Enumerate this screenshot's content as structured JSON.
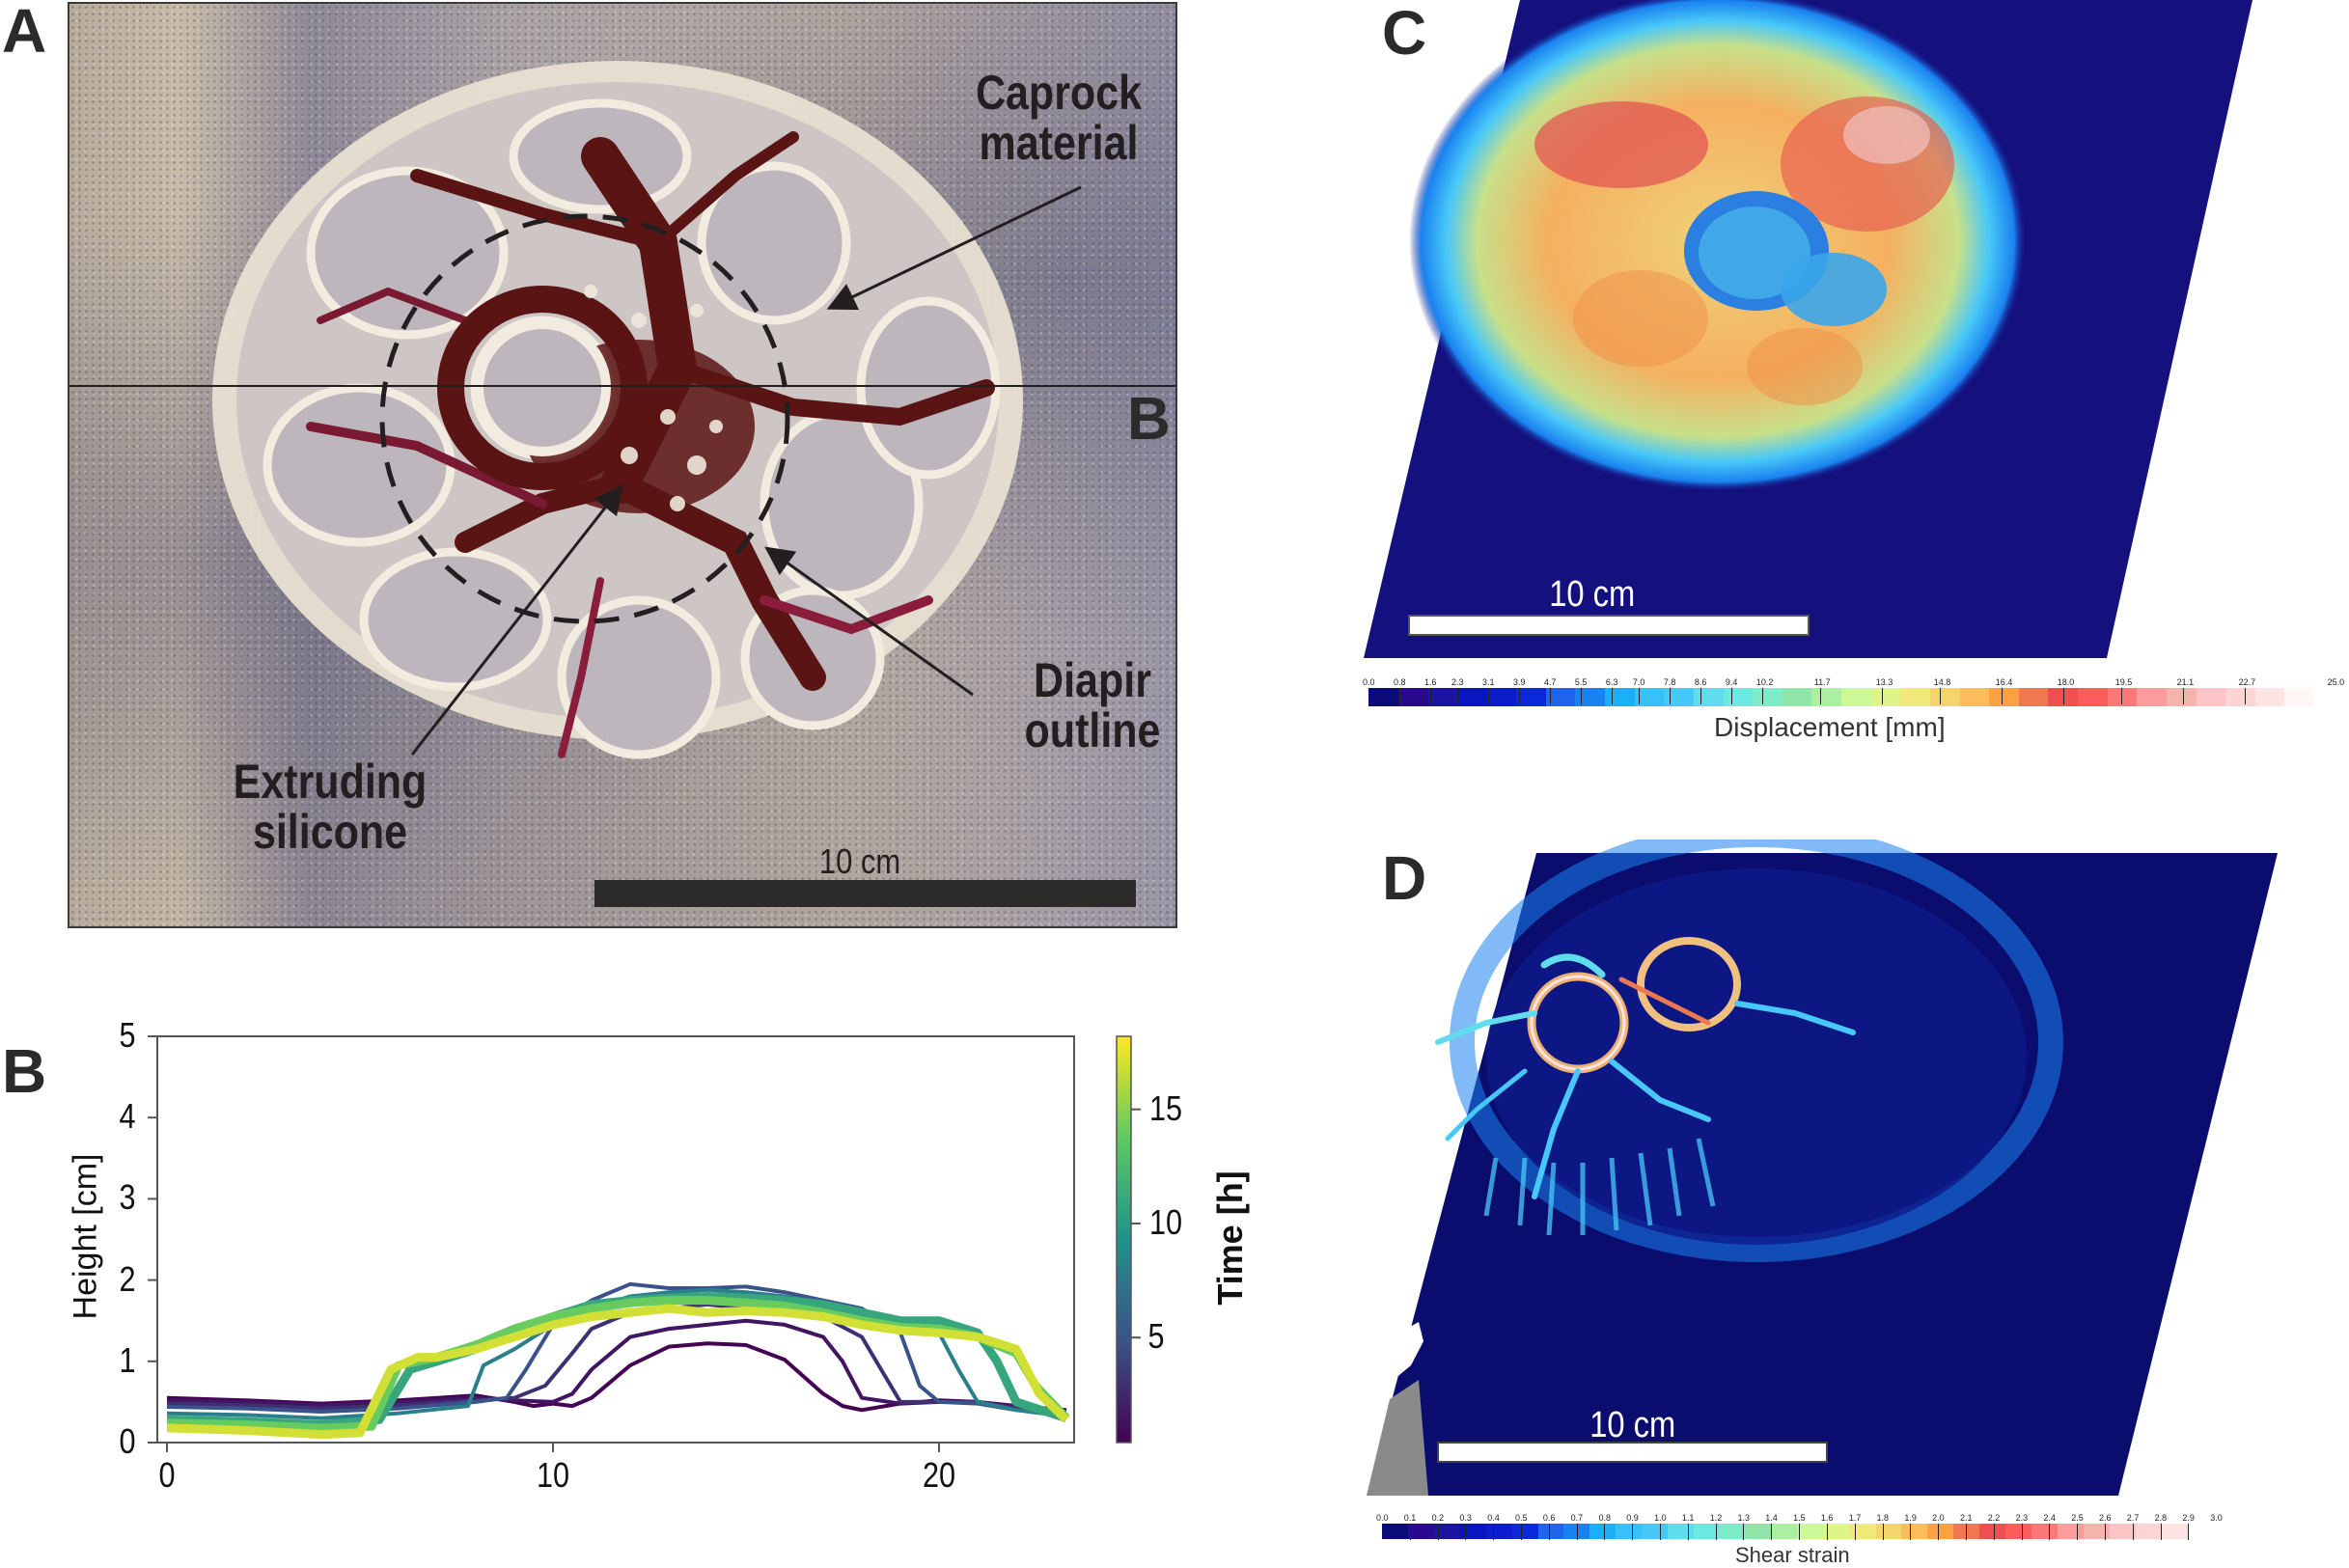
{
  "figure": {
    "panel_labels": {
      "a": "A",
      "b": "B",
      "c": "C",
      "d": "D"
    },
    "panel_a": {
      "section_line_label": "B",
      "annotations": [
        {
          "id": "caprock",
          "line1": "Caprock",
          "line2": "material"
        },
        {
          "id": "extruding",
          "line1": "Extruding",
          "line2": "silicone"
        },
        {
          "id": "diapir",
          "line1": "Diapir",
          "line2": "outline"
        }
      ],
      "scale_bar_label": "10 cm",
      "colors": {
        "silicone": "#5a1414",
        "caprock": "#ece6d8",
        "background": "#a9a2a5",
        "annotation": "#231f20"
      }
    },
    "panel_c": {
      "scale_bar_label": "10 cm",
      "colorbar": {
        "title": "Displacement [mm]",
        "ticks": [
          "0.0",
          "0.8",
          "1.6",
          "2.3",
          "3.1",
          "3.9",
          "4.7",
          "5.5",
          "6.3",
          "7.0",
          "7.8",
          "8.6",
          "9.4",
          "10.2",
          "11.7",
          "13.3",
          "14.8",
          "16.4",
          "18.0",
          "19.5",
          "21.1",
          "22.7",
          "25.0"
        ],
        "min": 0.0,
        "max": 25.0,
        "colors": [
          "#0a0a78",
          "#2a0a8c",
          "#1a14a0",
          "#0a14c0",
          "#0a1ccc",
          "#0a28dc",
          "#2064ec",
          "#1a82f0",
          "#1ab0f8",
          "#38c0f8",
          "#48c8f8",
          "#60dced",
          "#6ce8e0",
          "#7eecc8",
          "#90e6a8",
          "#aaf0a0",
          "#ccf898",
          "#e0f48c",
          "#f0e878",
          "#f4d46c",
          "#fcbc5c",
          "#fca044",
          "#f07850",
          "#ec5050",
          "#fc5c5c",
          "#fc7878",
          "#fc9c9c",
          "#f4b4ac",
          "#fcc4c4",
          "#fcd4d4",
          "#fce4e4",
          "#fff6f6"
        ]
      },
      "map_colors": {
        "background": "#14107e"
      }
    },
    "panel_d": {
      "scale_bar_label": "10 cm",
      "colorbar": {
        "title": "Shear strain",
        "ticks": [
          "0.0",
          "0.1",
          "0.2",
          "0.3",
          "0.4",
          "0.5",
          "0.6",
          "0.7",
          "0.8",
          "0.9",
          "1.0",
          "1.1",
          "1.2",
          "1.3",
          "1.4",
          "1.5",
          "1.6",
          "1.7",
          "1.8",
          "1.9",
          "2.0",
          "2.1",
          "2.2",
          "2.3",
          "2.4",
          "2.5",
          "2.6",
          "2.7",
          "2.8",
          "2.9",
          "3.0"
        ],
        "min": 0.0,
        "max": 3.0,
        "colors": [
          "#0a0a78",
          "#2a0a8c",
          "#1a14a0",
          "#0a14c0",
          "#0a1ccc",
          "#0a28dc",
          "#2064ec",
          "#1a82f0",
          "#1ab0f8",
          "#38c0f8",
          "#48c8f8",
          "#60dced",
          "#6ce8e0",
          "#7eecc8",
          "#90e6a8",
          "#aaf0a0",
          "#ccf898",
          "#e0f48c",
          "#f0e878",
          "#f4d46c",
          "#fcbc5c",
          "#fca044",
          "#f07850",
          "#ec5050",
          "#fc5c5c",
          "#fc7878",
          "#fc9c9c",
          "#f4b4ac",
          "#fcc4c4",
          "#fcd4d4",
          "#fce4e4"
        ]
      },
      "map_colors": {
        "background": "#0a0c6e"
      }
    }
  },
  "chart_data": {
    "type": "line",
    "title": "",
    "xlabel": "",
    "ylabel": "Height [cm]",
    "xlim": [
      -0.25,
      23.5
    ],
    "ylim": [
      0,
      5
    ],
    "xticks": [
      0,
      10,
      20
    ],
    "yticks": [
      0,
      1,
      2,
      3,
      4,
      5
    ],
    "grid": false,
    "colorbar": {
      "label": "Time [h]",
      "ticks": [
        5,
        10,
        15
      ],
      "range": [
        0.4,
        18.2
      ],
      "colormap": "viridis",
      "colormap_stops": [
        "#440154",
        "#3b528b",
        "#21918c",
        "#5ec962",
        "#fde725"
      ]
    },
    "series": [
      {
        "name": "t=0.5h",
        "time": 0.5,
        "x": [
          0,
          2,
          4,
          5,
          6,
          7,
          8,
          9,
          9.5,
          10,
          10.5,
          11,
          12,
          13,
          14,
          15,
          16,
          17,
          17.5,
          18,
          19,
          20,
          21,
          22,
          23.3
        ],
        "y": [
          0.55,
          0.52,
          0.48,
          0.5,
          0.52,
          0.55,
          0.58,
          0.5,
          0.45,
          0.48,
          0.45,
          0.55,
          0.95,
          1.18,
          1.22,
          1.2,
          1.02,
          0.6,
          0.45,
          0.4,
          0.48,
          0.52,
          0.5,
          0.45,
          0.4
        ]
      },
      {
        "name": "t=1.5h",
        "time": 1.5,
        "x": [
          0,
          2,
          4,
          6,
          8,
          9,
          10,
          10.5,
          11,
          12,
          13,
          14,
          15,
          16,
          17,
          17.5,
          18,
          19,
          20,
          21,
          22,
          23.3
        ],
        "y": [
          0.52,
          0.5,
          0.46,
          0.5,
          0.55,
          0.52,
          0.5,
          0.6,
          0.9,
          1.3,
          1.4,
          1.45,
          1.5,
          1.45,
          1.3,
          1.0,
          0.55,
          0.48,
          0.5,
          0.5,
          0.45,
          0.4
        ]
      },
      {
        "name": "t=3h",
        "time": 3.0,
        "x": [
          0,
          2,
          4,
          6,
          8,
          9,
          9.8,
          10.5,
          11,
          12,
          13,
          14,
          15,
          16,
          17,
          18,
          18.5,
          19,
          20,
          21,
          22,
          23.3
        ],
        "y": [
          0.48,
          0.46,
          0.42,
          0.46,
          0.52,
          0.55,
          0.7,
          1.1,
          1.4,
          1.6,
          1.65,
          1.7,
          1.65,
          1.6,
          1.55,
          1.3,
          0.9,
          0.5,
          0.5,
          0.5,
          0.42,
          0.38
        ]
      },
      {
        "name": "t=5h",
        "time": 5.0,
        "x": [
          0,
          2,
          4,
          6,
          8,
          8.8,
          9.3,
          10,
          11,
          12,
          13,
          14,
          15,
          16,
          17,
          18,
          19,
          19.5,
          20,
          21,
          22,
          23.3
        ],
        "y": [
          0.44,
          0.42,
          0.38,
          0.42,
          0.5,
          0.55,
          0.9,
          1.45,
          1.75,
          1.95,
          1.9,
          1.9,
          1.92,
          1.85,
          1.75,
          1.65,
          1.35,
          0.7,
          0.5,
          0.48,
          0.4,
          0.35
        ]
      },
      {
        "name": "t=8h",
        "time": 8.0,
        "x": [
          0,
          2,
          4,
          6,
          7.8,
          8.2,
          9,
          10,
          11,
          12,
          13,
          14,
          15,
          16,
          17,
          18,
          19,
          20,
          20.5,
          21,
          22,
          23.3
        ],
        "y": [
          0.36,
          0.34,
          0.3,
          0.36,
          0.45,
          0.95,
          1.15,
          1.45,
          1.65,
          1.8,
          1.85,
          1.88,
          1.85,
          1.8,
          1.72,
          1.6,
          1.5,
          1.35,
          0.9,
          0.5,
          0.4,
          0.32
        ]
      },
      {
        "name": "t=11h",
        "time": 11.0,
        "x": [
          0,
          2,
          4,
          5.5,
          6.3,
          7,
          8,
          9,
          10,
          11,
          12,
          13,
          14,
          15,
          16,
          17,
          18,
          19,
          20,
          21,
          21.5,
          22,
          23.3
        ],
        "y": [
          0.28,
          0.26,
          0.22,
          0.28,
          0.9,
          1.0,
          1.15,
          1.35,
          1.55,
          1.7,
          1.75,
          1.78,
          1.8,
          1.78,
          1.75,
          1.7,
          1.6,
          1.5,
          1.5,
          1.35,
          1.0,
          0.5,
          0.3
        ]
      },
      {
        "name": "t=14h",
        "time": 14.0,
        "x": [
          0,
          2,
          4,
          5.3,
          6,
          7,
          8,
          9,
          10,
          11,
          12,
          13,
          14,
          15,
          16,
          17,
          18,
          19,
          20,
          21,
          22,
          22.5,
          23.3
        ],
        "y": [
          0.24,
          0.22,
          0.18,
          0.2,
          0.95,
          1.05,
          1.2,
          1.4,
          1.55,
          1.65,
          1.72,
          1.75,
          1.75,
          1.72,
          1.68,
          1.6,
          1.5,
          1.42,
          1.4,
          1.3,
          1.1,
          0.7,
          0.3
        ]
      },
      {
        "name": "t=17h",
        "time": 17.0,
        "x": [
          0,
          2,
          4,
          5,
          5.8,
          6.5,
          7,
          8,
          9,
          10,
          11,
          12,
          13,
          14,
          15,
          16,
          17,
          18,
          19,
          20,
          21,
          22,
          22.6,
          23.3
        ],
        "y": [
          0.18,
          0.15,
          0.1,
          0.12,
          0.9,
          1.05,
          1.05,
          1.15,
          1.3,
          1.45,
          1.55,
          1.6,
          1.65,
          1.6,
          1.62,
          1.6,
          1.55,
          1.45,
          1.38,
          1.35,
          1.3,
          1.15,
          0.6,
          0.28
        ]
      }
    ]
  }
}
